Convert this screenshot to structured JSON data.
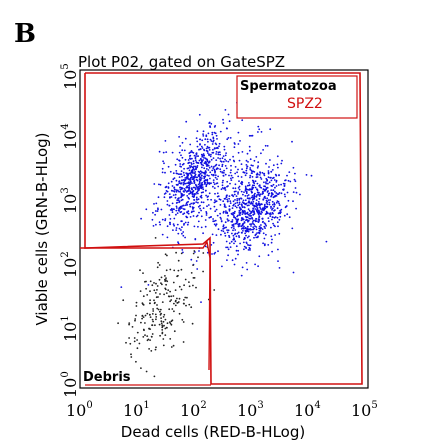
{
  "panel_label": "B",
  "chart_data": {
    "type": "scatter",
    "title": "Plot P02, gated on GateSPZ",
    "xlabel": "Dead cells (RED-B-HLog)",
    "ylabel": "Viable cells (GRN-B-HLog)",
    "xscale": "log",
    "yscale": "log",
    "xlim": [
      1,
      100000
    ],
    "ylim": [
      1,
      100000
    ],
    "x_ticks": [
      {
        "base": "10",
        "exp": "0"
      },
      {
        "base": "10",
        "exp": "1"
      },
      {
        "base": "10",
        "exp": "2"
      },
      {
        "base": "10",
        "exp": "3"
      },
      {
        "base": "10",
        "exp": "4"
      },
      {
        "base": "10",
        "exp": "5"
      }
    ],
    "y_ticks": [
      {
        "base": "10",
        "exp": "0"
      },
      {
        "base": "10",
        "exp": "1"
      },
      {
        "base": "10",
        "exp": "2"
      },
      {
        "base": "10",
        "exp": "3"
      },
      {
        "base": "10",
        "exp": "4"
      },
      {
        "base": "10",
        "exp": "5"
      }
    ],
    "gates": [
      {
        "name": "Spermatozoa",
        "color": "#d01010"
      },
      {
        "name": "SPZ2",
        "color": "#d01010"
      },
      {
        "name": "Debris",
        "color": "#d01010"
      }
    ],
    "populations": [
      {
        "color": "#1010e0",
        "center_log": [
          2.0,
          3.3
        ],
        "spread_log": [
          0.3,
          0.38
        ],
        "count": 650,
        "tilt": 0.6
      },
      {
        "color": "#1010e0",
        "center_log": [
          3.0,
          2.85
        ],
        "spread_log": [
          0.28,
          0.32
        ],
        "count": 650,
        "tilt": 0.3
      },
      {
        "color": "#1010e0",
        "center_log": [
          2.6,
          3.0
        ],
        "spread_log": [
          0.6,
          0.55
        ],
        "count": 300,
        "tilt": 0.0
      },
      {
        "color": "#222222",
        "center_log": [
          1.45,
          1.3
        ],
        "spread_log": [
          0.3,
          0.4
        ],
        "count": 220,
        "tilt": 0.5
      }
    ]
  }
}
